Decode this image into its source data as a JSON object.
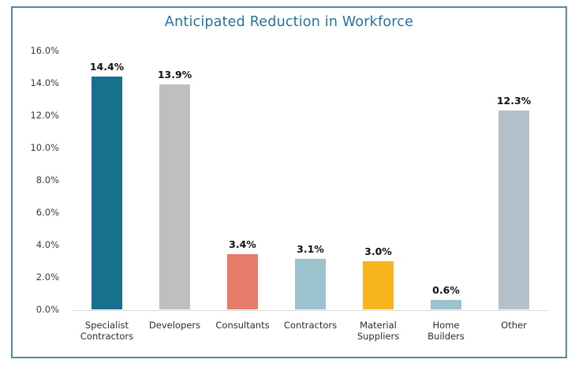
{
  "chart_data": {
    "type": "bar",
    "title": "Anticipated Reduction in Workforce",
    "categories": [
      "Specialist\nContractors",
      "Developers",
      "Consultants",
      "Contractors",
      "Material\nSuppliers",
      "Home\nBuilders",
      "Other"
    ],
    "values": [
      14.4,
      13.9,
      3.4,
      3.1,
      3.0,
      0.6,
      12.3
    ],
    "data_labels": [
      "14.4%",
      "13.9%",
      "3.4%",
      "3.1%",
      "3.0%",
      "0.6%",
      "12.3%"
    ],
    "bar_colors": [
      "#16708e",
      "#bfbfbf",
      "#e87c6b",
      "#9cc3cd",
      "#f6b51e",
      "#9cc3cd",
      "#b3c2ca"
    ],
    "xlabel": "",
    "ylabel": "",
    "ylim": [
      0,
      16
    ],
    "ytick_step": 2,
    "ytick_labels": [
      "0.0%",
      "2.0%",
      "4.0%",
      "6.0%",
      "8.0%",
      "10.0%",
      "12.0%",
      "14.0%",
      "16.0%"
    ],
    "grid": false,
    "legend": null,
    "colors": {
      "title": "#1d74a0",
      "frame_border": "#4e8ca3",
      "axis_text": "#3a3a3a",
      "data_label": "#111111",
      "baseline": "#d9d9d9"
    }
  }
}
